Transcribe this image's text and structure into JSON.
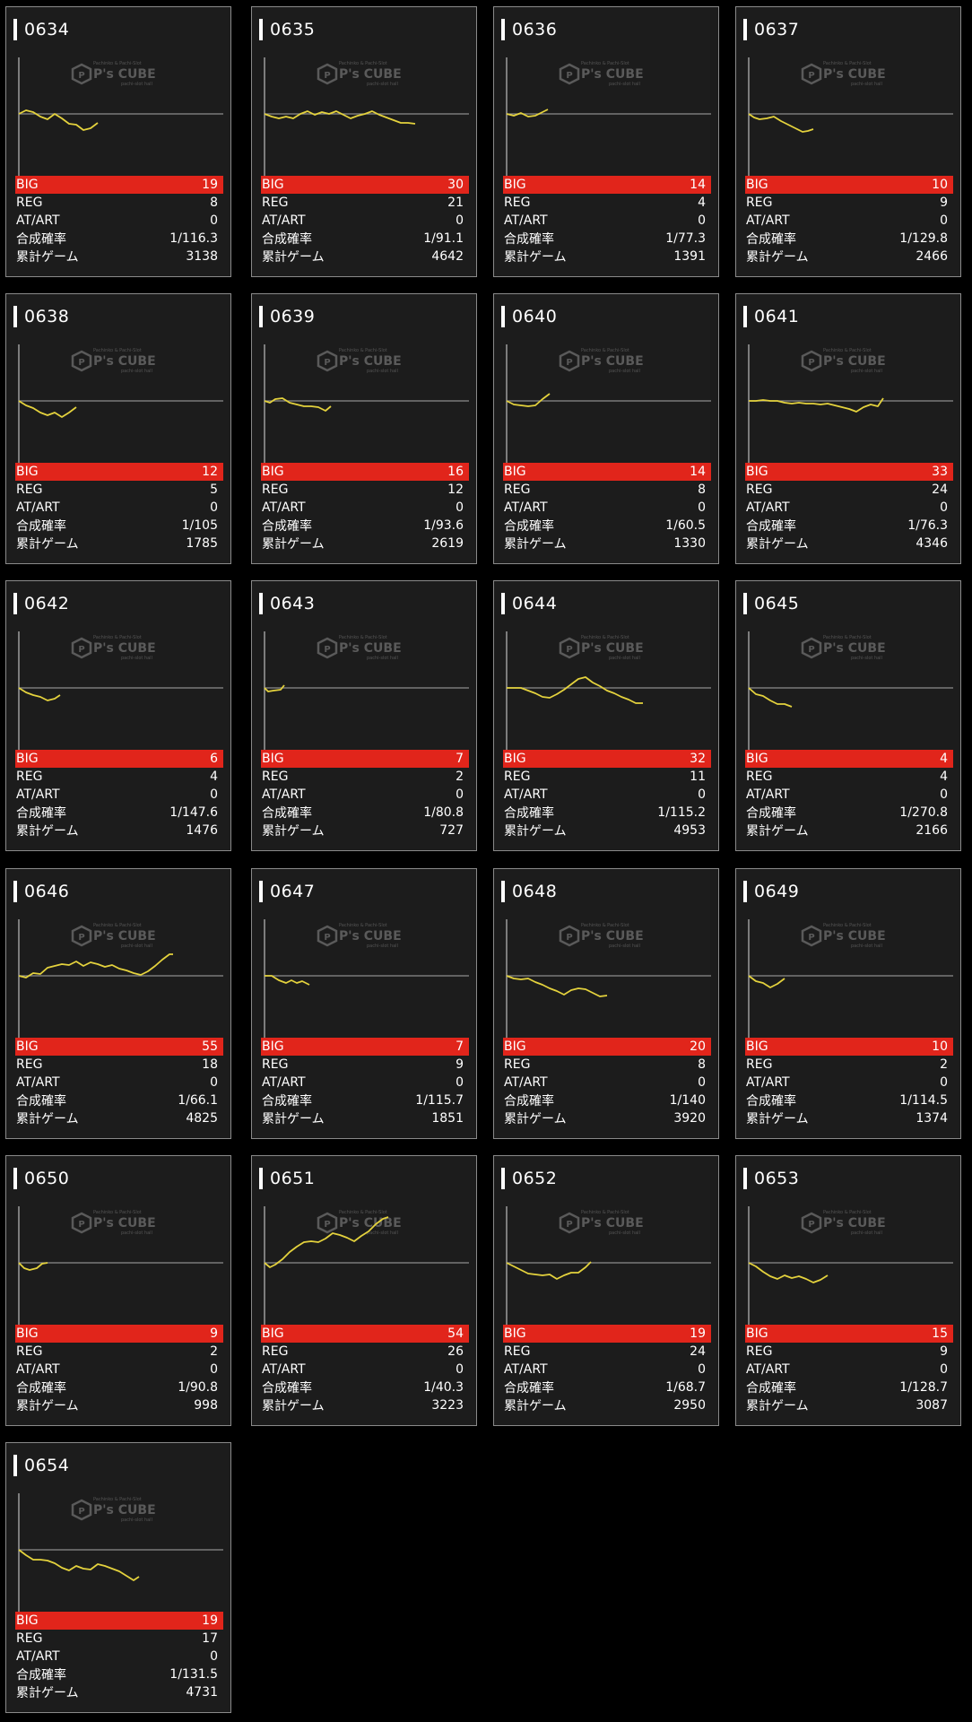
{
  "watermark": {
    "top": "Pachinko & Pachi-Slot",
    "brand": "P's CUBE",
    "bottom": "pachi-slot hall"
  },
  "colors": {
    "big_bar": "#e1251b",
    "line": "#e4d23d",
    "card_bg": "#1c1c1c",
    "card_border": "#8a8a8a"
  },
  "labels": {
    "big": "BIG",
    "reg": "REG",
    "at_art": "AT/ART",
    "prob": "合成確率",
    "games": "累計ゲーム"
  },
  "machines": [
    {
      "id": "0634",
      "big": "19",
      "reg": "8",
      "at_art": "0",
      "prob": "1/116.3",
      "games": "3138",
      "trend": [
        [
          0,
          0
        ],
        [
          8,
          -4
        ],
        [
          16,
          -2
        ],
        [
          24,
          3
        ],
        [
          32,
          6
        ],
        [
          40,
          0
        ],
        [
          48,
          5
        ],
        [
          56,
          11
        ],
        [
          64,
          12
        ],
        [
          72,
          18
        ],
        [
          80,
          16
        ],
        [
          88,
          10
        ]
      ]
    },
    {
      "id": "0635",
      "big": "30",
      "reg": "21",
      "at_art": "0",
      "prob": "1/91.1",
      "games": "4642",
      "trend": [
        [
          0,
          0
        ],
        [
          8,
          3
        ],
        [
          16,
          5
        ],
        [
          24,
          3
        ],
        [
          32,
          5
        ],
        [
          40,
          0
        ],
        [
          48,
          -3
        ],
        [
          56,
          1
        ],
        [
          64,
          -2
        ],
        [
          72,
          0
        ],
        [
          80,
          -3
        ],
        [
          88,
          1
        ],
        [
          96,
          5
        ],
        [
          104,
          2
        ],
        [
          112,
          0
        ],
        [
          120,
          -3
        ],
        [
          128,
          1
        ],
        [
          136,
          4
        ],
        [
          144,
          7
        ],
        [
          152,
          10
        ],
        [
          160,
          10
        ],
        [
          168,
          11
        ]
      ]
    },
    {
      "id": "0636",
      "big": "14",
      "reg": "4",
      "at_art": "0",
      "prob": "1/77.3",
      "games": "1391",
      "trend": [
        [
          0,
          0
        ],
        [
          8,
          2
        ],
        [
          16,
          -1
        ],
        [
          24,
          3
        ],
        [
          32,
          2
        ],
        [
          40,
          -2
        ],
        [
          46,
          -5
        ]
      ]
    },
    {
      "id": "0637",
      "big": "10",
      "reg": "9",
      "at_art": "0",
      "prob": "1/129.8",
      "games": "2466",
      "trend": [
        [
          0,
          0
        ],
        [
          6,
          4
        ],
        [
          12,
          6
        ],
        [
          20,
          5
        ],
        [
          28,
          3
        ],
        [
          36,
          8
        ],
        [
          44,
          12
        ],
        [
          52,
          16
        ],
        [
          60,
          20
        ],
        [
          66,
          19
        ],
        [
          72,
          17
        ]
      ]
    },
    {
      "id": "0638",
      "big": "12",
      "reg": "5",
      "at_art": "0",
      "prob": "1/105",
      "games": "1785",
      "trend": [
        [
          0,
          0
        ],
        [
          8,
          5
        ],
        [
          16,
          8
        ],
        [
          24,
          13
        ],
        [
          32,
          16
        ],
        [
          40,
          13
        ],
        [
          48,
          18
        ],
        [
          56,
          13
        ],
        [
          64,
          7
        ]
      ]
    },
    {
      "id": "0639",
      "big": "16",
      "reg": "12",
      "at_art": "0",
      "prob": "1/93.6",
      "games": "2619",
      "trend": [
        [
          0,
          0
        ],
        [
          6,
          2
        ],
        [
          12,
          -2
        ],
        [
          20,
          -3
        ],
        [
          28,
          2
        ],
        [
          36,
          4
        ],
        [
          44,
          6
        ],
        [
          52,
          6
        ],
        [
          60,
          7
        ],
        [
          68,
          11
        ],
        [
          74,
          6
        ]
      ]
    },
    {
      "id": "0640",
      "big": "14",
      "reg": "8",
      "at_art": "0",
      "prob": "1/60.5",
      "games": "1330",
      "trend": [
        [
          0,
          0
        ],
        [
          8,
          4
        ],
        [
          16,
          5
        ],
        [
          24,
          6
        ],
        [
          32,
          5
        ],
        [
          40,
          -2
        ],
        [
          48,
          -8
        ]
      ]
    },
    {
      "id": "0641",
      "big": "33",
      "reg": "24",
      "at_art": "0",
      "prob": "1/76.3",
      "games": "4346",
      "trend": [
        [
          0,
          0
        ],
        [
          8,
          0
        ],
        [
          16,
          -1
        ],
        [
          24,
          0
        ],
        [
          32,
          0
        ],
        [
          40,
          2
        ],
        [
          48,
          3
        ],
        [
          56,
          2
        ],
        [
          64,
          3
        ],
        [
          72,
          3
        ],
        [
          80,
          4
        ],
        [
          88,
          3
        ],
        [
          96,
          5
        ],
        [
          104,
          7
        ],
        [
          112,
          9
        ],
        [
          120,
          12
        ],
        [
          128,
          7
        ],
        [
          136,
          4
        ],
        [
          144,
          6
        ],
        [
          150,
          -3
        ]
      ]
    },
    {
      "id": "0642",
      "big": "6",
      "reg": "4",
      "at_art": "0",
      "prob": "1/147.6",
      "games": "1476",
      "trend": [
        [
          0,
          0
        ],
        [
          8,
          5
        ],
        [
          16,
          8
        ],
        [
          24,
          10
        ],
        [
          32,
          14
        ],
        [
          40,
          12
        ],
        [
          46,
          8
        ]
      ]
    },
    {
      "id": "0643",
      "big": "7",
      "reg": "2",
      "at_art": "0",
      "prob": "1/80.8",
      "games": "727",
      "trend": [
        [
          0,
          0
        ],
        [
          4,
          4
        ],
        [
          10,
          3
        ],
        [
          18,
          2
        ],
        [
          22,
          -3
        ]
      ]
    },
    {
      "id": "0644",
      "big": "32",
      "reg": "11",
      "at_art": "0",
      "prob": "1/115.2",
      "games": "4953",
      "trend": [
        [
          0,
          0
        ],
        [
          8,
          0
        ],
        [
          16,
          0
        ],
        [
          24,
          3
        ],
        [
          32,
          6
        ],
        [
          40,
          10
        ],
        [
          48,
          11
        ],
        [
          56,
          7
        ],
        [
          64,
          2
        ],
        [
          72,
          -4
        ],
        [
          80,
          -10
        ],
        [
          88,
          -12
        ],
        [
          96,
          -6
        ],
        [
          104,
          -2
        ],
        [
          112,
          3
        ],
        [
          120,
          6
        ],
        [
          128,
          10
        ],
        [
          136,
          13
        ],
        [
          144,
          17
        ],
        [
          152,
          17
        ]
      ]
    },
    {
      "id": "0645",
      "big": "4",
      "reg": "4",
      "at_art": "0",
      "prob": "1/270.8",
      "games": "2166",
      "trend": [
        [
          0,
          0
        ],
        [
          8,
          7
        ],
        [
          16,
          9
        ],
        [
          24,
          14
        ],
        [
          32,
          18
        ],
        [
          40,
          18
        ],
        [
          48,
          21
        ]
      ]
    },
    {
      "id": "0646",
      "big": "55",
      "reg": "18",
      "at_art": "0",
      "prob": "1/66.1",
      "games": "4825",
      "trend": [
        [
          0,
          0
        ],
        [
          8,
          2
        ],
        [
          16,
          -3
        ],
        [
          24,
          -2
        ],
        [
          32,
          -9
        ],
        [
          40,
          -11
        ],
        [
          48,
          -13
        ],
        [
          56,
          -12
        ],
        [
          64,
          -16
        ],
        [
          72,
          -11
        ],
        [
          80,
          -15
        ],
        [
          88,
          -13
        ],
        [
          96,
          -10
        ],
        [
          104,
          -12
        ],
        [
          112,
          -8
        ],
        [
          120,
          -6
        ],
        [
          128,
          -3
        ],
        [
          136,
          -1
        ],
        [
          144,
          -5
        ],
        [
          152,
          -11
        ],
        [
          160,
          -18
        ],
        [
          168,
          -24
        ],
        [
          172,
          -24
        ]
      ]
    },
    {
      "id": "0647",
      "big": "7",
      "reg": "9",
      "at_art": "0",
      "prob": "1/115.7",
      "games": "1851",
      "trend": [
        [
          0,
          0
        ],
        [
          8,
          0
        ],
        [
          16,
          5
        ],
        [
          24,
          8
        ],
        [
          30,
          5
        ],
        [
          36,
          8
        ],
        [
          42,
          6
        ],
        [
          50,
          10
        ]
      ]
    },
    {
      "id": "0648",
      "big": "20",
      "reg": "8",
      "at_art": "0",
      "prob": "1/140",
      "games": "3920",
      "trend": [
        [
          0,
          0
        ],
        [
          8,
          3
        ],
        [
          16,
          4
        ],
        [
          24,
          3
        ],
        [
          32,
          7
        ],
        [
          40,
          10
        ],
        [
          48,
          14
        ],
        [
          56,
          17
        ],
        [
          64,
          21
        ],
        [
          72,
          16
        ],
        [
          80,
          14
        ],
        [
          88,
          15
        ],
        [
          96,
          19
        ],
        [
          104,
          23
        ],
        [
          112,
          22
        ]
      ]
    },
    {
      "id": "0649",
      "big": "10",
      "reg": "2",
      "at_art": "0",
      "prob": "1/114.5",
      "games": "1374",
      "trend": [
        [
          0,
          0
        ],
        [
          8,
          6
        ],
        [
          16,
          8
        ],
        [
          24,
          13
        ],
        [
          32,
          9
        ],
        [
          40,
          3
        ]
      ]
    },
    {
      "id": "0650",
      "big": "9",
      "reg": "2",
      "at_art": "0",
      "prob": "1/90.8",
      "games": "998",
      "trend": [
        [
          0,
          0
        ],
        [
          6,
          6
        ],
        [
          12,
          8
        ],
        [
          20,
          6
        ],
        [
          26,
          1
        ],
        [
          32,
          0
        ]
      ]
    },
    {
      "id": "0651",
      "big": "54",
      "reg": "26",
      "at_art": "0",
      "prob": "1/40.3",
      "games": "3223",
      "trend": [
        [
          0,
          0
        ],
        [
          6,
          5
        ],
        [
          12,
          2
        ],
        [
          20,
          -4
        ],
        [
          28,
          -12
        ],
        [
          36,
          -18
        ],
        [
          44,
          -23
        ],
        [
          52,
          -24
        ],
        [
          60,
          -23
        ],
        [
          68,
          -27
        ],
        [
          76,
          -33
        ],
        [
          84,
          -31
        ],
        [
          92,
          -28
        ],
        [
          100,
          -24
        ],
        [
          108,
          -30
        ],
        [
          116,
          -35
        ],
        [
          124,
          -43
        ],
        [
          132,
          -49
        ],
        [
          138,
          -51
        ]
      ]
    },
    {
      "id": "0652",
      "big": "19",
      "reg": "24",
      "at_art": "0",
      "prob": "1/68.7",
      "games": "2950",
      "trend": [
        [
          0,
          0
        ],
        [
          8,
          4
        ],
        [
          16,
          8
        ],
        [
          24,
          12
        ],
        [
          32,
          13
        ],
        [
          40,
          14
        ],
        [
          48,
          13
        ],
        [
          56,
          18
        ],
        [
          64,
          14
        ],
        [
          72,
          11
        ],
        [
          80,
          11
        ],
        [
          88,
          5
        ],
        [
          94,
          -1
        ]
      ]
    },
    {
      "id": "0653",
      "big": "15",
      "reg": "9",
      "at_art": "0",
      "prob": "1/128.7",
      "games": "3087",
      "trend": [
        [
          0,
          0
        ],
        [
          8,
          4
        ],
        [
          16,
          10
        ],
        [
          24,
          15
        ],
        [
          32,
          18
        ],
        [
          40,
          14
        ],
        [
          48,
          17
        ],
        [
          56,
          15
        ],
        [
          64,
          18
        ],
        [
          72,
          22
        ],
        [
          80,
          19
        ],
        [
          88,
          14
        ]
      ]
    },
    {
      "id": "0654",
      "big": "19",
      "reg": "17",
      "at_art": "0",
      "prob": "1/131.5",
      "games": "4731",
      "trend": [
        [
          0,
          0
        ],
        [
          8,
          6
        ],
        [
          16,
          11
        ],
        [
          24,
          11
        ],
        [
          32,
          12
        ],
        [
          40,
          15
        ],
        [
          48,
          20
        ],
        [
          56,
          23
        ],
        [
          64,
          18
        ],
        [
          72,
          21
        ],
        [
          80,
          22
        ],
        [
          88,
          16
        ],
        [
          96,
          18
        ],
        [
          104,
          21
        ],
        [
          112,
          24
        ],
        [
          120,
          29
        ],
        [
          128,
          34
        ],
        [
          134,
          30
        ]
      ]
    }
  ]
}
